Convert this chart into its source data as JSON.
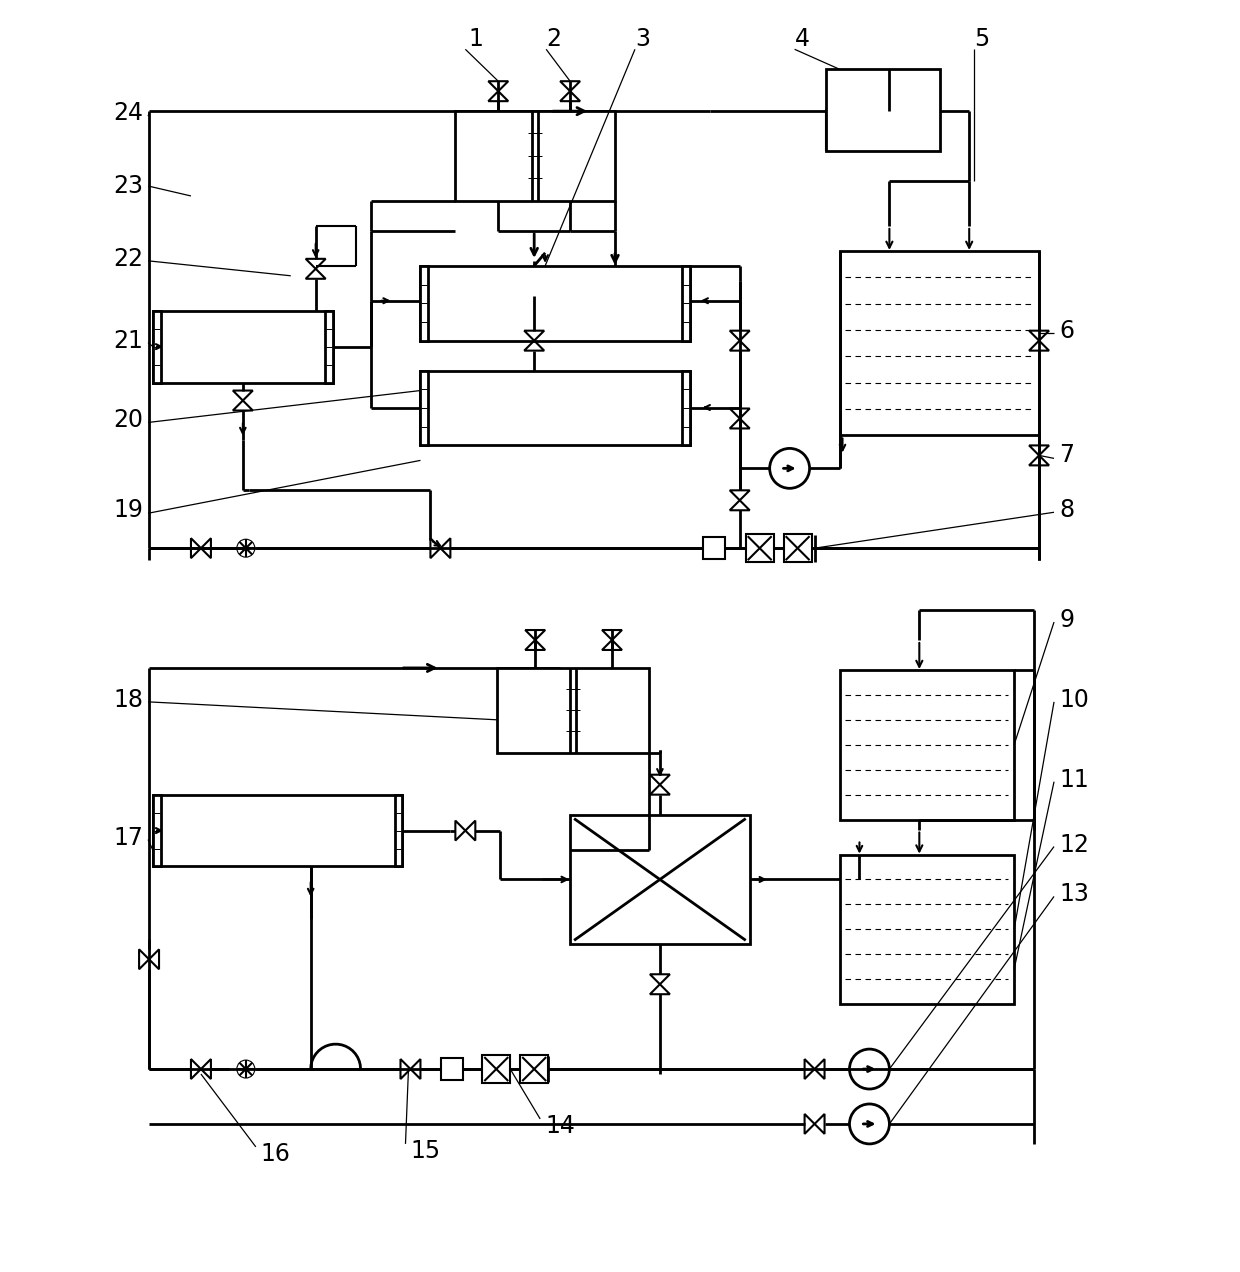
{
  "bg_color": "#ffffff",
  "line_color": "#000000",
  "lw": 1.5,
  "lw2": 2.0
}
